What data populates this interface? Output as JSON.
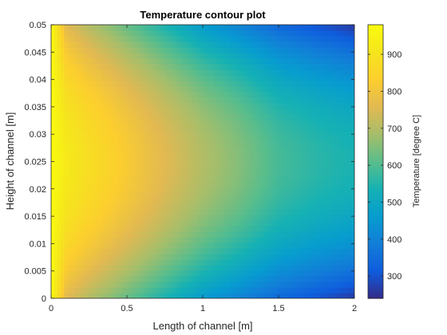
{
  "chart_data": {
    "type": "heatmap",
    "subtype": "filled-contour",
    "title": "Temperature contour plot",
    "xlabel": "Length of channel [m]",
    "ylabel": "Height of channel [m]",
    "xlim": [
      0,
      2
    ],
    "ylim": [
      0,
      0.05
    ],
    "x_ticks": [
      0,
      0.5,
      1,
      1.5,
      2
    ],
    "x_tick_labels": [
      "0",
      "0.5",
      "1",
      "1.5",
      "2"
    ],
    "y_ticks": [
      0,
      0.005,
      0.01,
      0.015,
      0.02,
      0.025,
      0.03,
      0.035,
      0.04,
      0.045,
      0.05
    ],
    "y_tick_labels": [
      "0",
      "0.005",
      "0.01",
      "0.015",
      "0.02",
      "0.025",
      "0.03",
      "0.035",
      "0.04",
      "0.045",
      "0.05"
    ],
    "colorbar": {
      "label": "Temperature [degree C]",
      "range": [
        240,
        980
      ],
      "ticks": [
        300,
        400,
        500,
        600,
        700,
        800,
        900
      ],
      "tick_labels": [
        "300",
        "400",
        "500",
        "600",
        "700",
        "800",
        "900"
      ],
      "colormap": "parula"
    },
    "field": {
      "inlet_temperature": 980,
      "x": [
        0,
        0.1,
        0.25,
        0.5,
        0.75,
        1.0,
        1.25,
        1.5,
        1.75,
        2.0
      ],
      "centerline_y": 0.025,
      "centerline_temperature": [
        980,
        920,
        880,
        820,
        760,
        700,
        650,
        590,
        560,
        540
      ],
      "wall_y": [
        0,
        0.05
      ],
      "wall_temperature": [
        980,
        760,
        700,
        620,
        540,
        460,
        400,
        340,
        300,
        260
      ]
    },
    "grid": false,
    "box": true
  }
}
